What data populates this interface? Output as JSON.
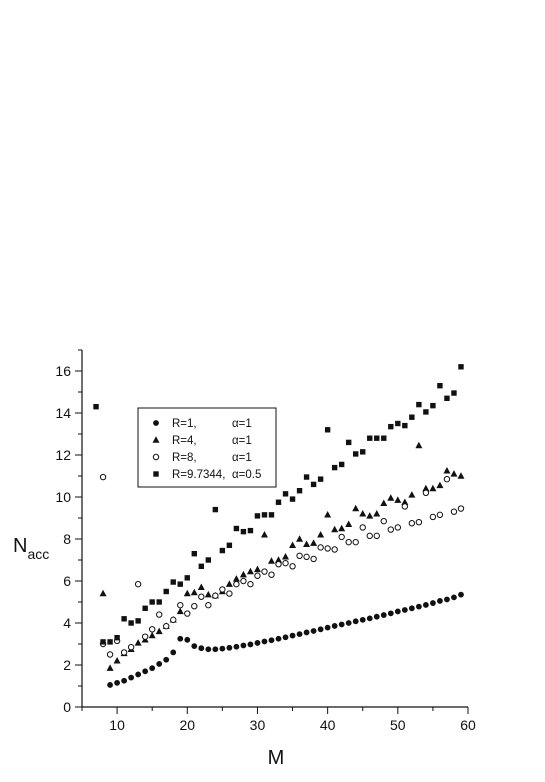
{
  "chart_data": {
    "type": "scatter",
    "xlabel": "M",
    "ylabel": {
      "main": "N",
      "sub": "acc"
    },
    "xlim": [
      5,
      60
    ],
    "ylim": [
      0,
      17
    ],
    "xticks": [
      10,
      20,
      30,
      40,
      50,
      60
    ],
    "yticks": [
      0,
      2,
      4,
      6,
      8,
      10,
      12,
      14,
      16
    ],
    "grid": false,
    "legend_position": "top-left",
    "series": [
      {
        "name": "R=1,",
        "alpha": "α=1",
        "marker": "filled-circle",
        "points": [
          [
            9,
            1.05
          ],
          [
            10,
            1.15
          ],
          [
            11,
            1.25
          ],
          [
            12,
            1.4
          ],
          [
            13,
            1.55
          ],
          [
            14,
            1.7
          ],
          [
            15,
            1.85
          ],
          [
            16,
            2.05
          ],
          [
            17,
            2.25
          ],
          [
            18,
            2.6
          ],
          [
            19,
            3.25
          ],
          [
            20,
            3.2
          ],
          [
            21,
            2.9
          ],
          [
            22,
            2.8
          ],
          [
            23,
            2.75
          ],
          [
            24,
            2.75
          ],
          [
            25,
            2.78
          ],
          [
            26,
            2.82
          ],
          [
            27,
            2.87
          ],
          [
            28,
            2.93
          ],
          [
            29,
            2.98
          ],
          [
            30,
            3.05
          ],
          [
            31,
            3.12
          ],
          [
            32,
            3.18
          ],
          [
            33,
            3.25
          ],
          [
            34,
            3.32
          ],
          [
            35,
            3.4
          ],
          [
            36,
            3.47
          ],
          [
            37,
            3.55
          ],
          [
            38,
            3.62
          ],
          [
            39,
            3.7
          ],
          [
            40,
            3.78
          ],
          [
            41,
            3.86
          ],
          [
            42,
            3.93
          ],
          [
            43,
            4.0
          ],
          [
            44,
            4.08
          ],
          [
            45,
            4.15
          ],
          [
            46,
            4.22
          ],
          [
            47,
            4.3
          ],
          [
            48,
            4.38
          ],
          [
            49,
            4.46
          ],
          [
            50,
            4.55
          ],
          [
            51,
            4.62
          ],
          [
            52,
            4.7
          ],
          [
            53,
            4.78
          ],
          [
            54,
            4.86
          ],
          [
            55,
            4.95
          ],
          [
            56,
            5.05
          ],
          [
            57,
            5.12
          ],
          [
            58,
            5.22
          ],
          [
            59,
            5.35
          ]
        ]
      },
      {
        "name": "R=4,",
        "alpha": "α=1",
        "marker": "filled-triangle",
        "points": [
          [
            8,
            5.4
          ],
          [
            9,
            1.85
          ],
          [
            10,
            2.2
          ],
          [
            11,
            2.55
          ],
          [
            12,
            2.75
          ],
          [
            13,
            3.05
          ],
          [
            14,
            3.2
          ],
          [
            15,
            3.4
          ],
          [
            16,
            3.6
          ],
          [
            17,
            3.85
          ],
          [
            18,
            4.15
          ],
          [
            19,
            4.55
          ],
          [
            20,
            5.4
          ],
          [
            21,
            5.45
          ],
          [
            22,
            5.7
          ],
          [
            23,
            5.35
          ],
          [
            24,
            5.3
          ],
          [
            25,
            5.5
          ],
          [
            26,
            5.85
          ],
          [
            27,
            6.1
          ],
          [
            28,
            6.3
          ],
          [
            29,
            6.45
          ],
          [
            30,
            6.55
          ],
          [
            31,
            8.2
          ],
          [
            32,
            6.95
          ],
          [
            33,
            7.0
          ],
          [
            34,
            7.15
          ],
          [
            35,
            7.7
          ],
          [
            36,
            8.0
          ],
          [
            37,
            7.75
          ],
          [
            38,
            7.8
          ],
          [
            39,
            8.2
          ],
          [
            40,
            9.15
          ],
          [
            41,
            8.45
          ],
          [
            42,
            8.5
          ],
          [
            43,
            8.7
          ],
          [
            44,
            9.45
          ],
          [
            45,
            9.2
          ],
          [
            46,
            9.1
          ],
          [
            47,
            9.2
          ],
          [
            48,
            9.7
          ],
          [
            49,
            9.95
          ],
          [
            50,
            9.85
          ],
          [
            51,
            9.75
          ],
          [
            52,
            10.1
          ],
          [
            53,
            12.45
          ],
          [
            54,
            10.4
          ],
          [
            55,
            10.4
          ],
          [
            56,
            10.55
          ],
          [
            57,
            11.25
          ],
          [
            58,
            11.1
          ],
          [
            59,
            11.0
          ]
        ]
      },
      {
        "name": "R=8,",
        "alpha": "α=1",
        "marker": "open-circle",
        "points": [
          [
            8,
            10.95
          ],
          [
            8,
            3.0
          ],
          [
            9,
            2.5
          ],
          [
            10,
            3.15
          ],
          [
            11,
            2.6
          ],
          [
            12,
            2.85
          ],
          [
            13,
            5.85
          ],
          [
            14,
            3.35
          ],
          [
            15,
            3.7
          ],
          [
            16,
            4.4
          ],
          [
            17,
            3.85
          ],
          [
            18,
            4.15
          ],
          [
            19,
            4.85
          ],
          [
            20,
            4.45
          ],
          [
            21,
            4.8
          ],
          [
            22,
            5.25
          ],
          [
            23,
            4.85
          ],
          [
            24,
            5.3
          ],
          [
            25,
            5.6
          ],
          [
            26,
            5.4
          ],
          [
            27,
            5.85
          ],
          [
            28,
            6.0
          ],
          [
            29,
            5.85
          ],
          [
            30,
            6.25
          ],
          [
            31,
            6.45
          ],
          [
            32,
            6.3
          ],
          [
            33,
            6.8
          ],
          [
            34,
            6.85
          ],
          [
            35,
            6.7
          ],
          [
            36,
            7.2
          ],
          [
            37,
            7.15
          ],
          [
            38,
            7.05
          ],
          [
            39,
            7.6
          ],
          [
            40,
            7.55
          ],
          [
            41,
            7.5
          ],
          [
            42,
            8.1
          ],
          [
            43,
            7.85
          ],
          [
            44,
            7.85
          ],
          [
            45,
            8.55
          ],
          [
            46,
            8.15
          ],
          [
            47,
            8.15
          ],
          [
            48,
            8.85
          ],
          [
            49,
            8.45
          ],
          [
            50,
            8.55
          ],
          [
            51,
            9.55
          ],
          [
            52,
            8.75
          ],
          [
            53,
            8.8
          ],
          [
            54,
            10.2
          ],
          [
            55,
            9.05
          ],
          [
            56,
            9.15
          ],
          [
            57,
            10.85
          ],
          [
            58,
            9.3
          ],
          [
            59,
            9.45
          ]
        ]
      },
      {
        "name": "R=9.7344,",
        "alpha": "α=0.5",
        "marker": "filled-square",
        "points": [
          [
            7,
            14.3
          ],
          [
            8,
            3.1
          ],
          [
            9,
            3.1
          ],
          [
            10,
            3.3
          ],
          [
            11,
            4.2
          ],
          [
            12,
            4.0
          ],
          [
            13,
            4.1
          ],
          [
            14,
            4.7
          ],
          [
            15,
            5.0
          ],
          [
            16,
            5.0
          ],
          [
            17,
            5.5
          ],
          [
            18,
            5.95
          ],
          [
            19,
            5.85
          ],
          [
            20,
            6.15
          ],
          [
            21,
            7.3
          ],
          [
            22,
            6.7
          ],
          [
            23,
            7.0
          ],
          [
            24,
            9.4
          ],
          [
            25,
            7.45
          ],
          [
            26,
            7.7
          ],
          [
            27,
            8.5
          ],
          [
            28,
            8.35
          ],
          [
            29,
            8.4
          ],
          [
            30,
            9.1
          ],
          [
            31,
            9.15
          ],
          [
            32,
            9.15
          ],
          [
            33,
            9.75
          ],
          [
            34,
            10.15
          ],
          [
            35,
            9.9
          ],
          [
            36,
            10.3
          ],
          [
            37,
            10.95
          ],
          [
            38,
            10.6
          ],
          [
            39,
            10.85
          ],
          [
            40,
            13.2
          ],
          [
            41,
            11.4
          ],
          [
            42,
            11.55
          ],
          [
            43,
            12.6
          ],
          [
            44,
            12.05
          ],
          [
            45,
            12.15
          ],
          [
            46,
            12.8
          ],
          [
            47,
            12.8
          ],
          [
            48,
            12.8
          ],
          [
            49,
            13.35
          ],
          [
            50,
            13.5
          ],
          [
            51,
            13.4
          ],
          [
            52,
            13.8
          ],
          [
            53,
            14.4
          ],
          [
            54,
            14.05
          ],
          [
            55,
            14.35
          ],
          [
            56,
            15.3
          ],
          [
            57,
            14.7
          ],
          [
            58,
            14.95
          ],
          [
            59,
            16.2
          ]
        ]
      }
    ]
  }
}
